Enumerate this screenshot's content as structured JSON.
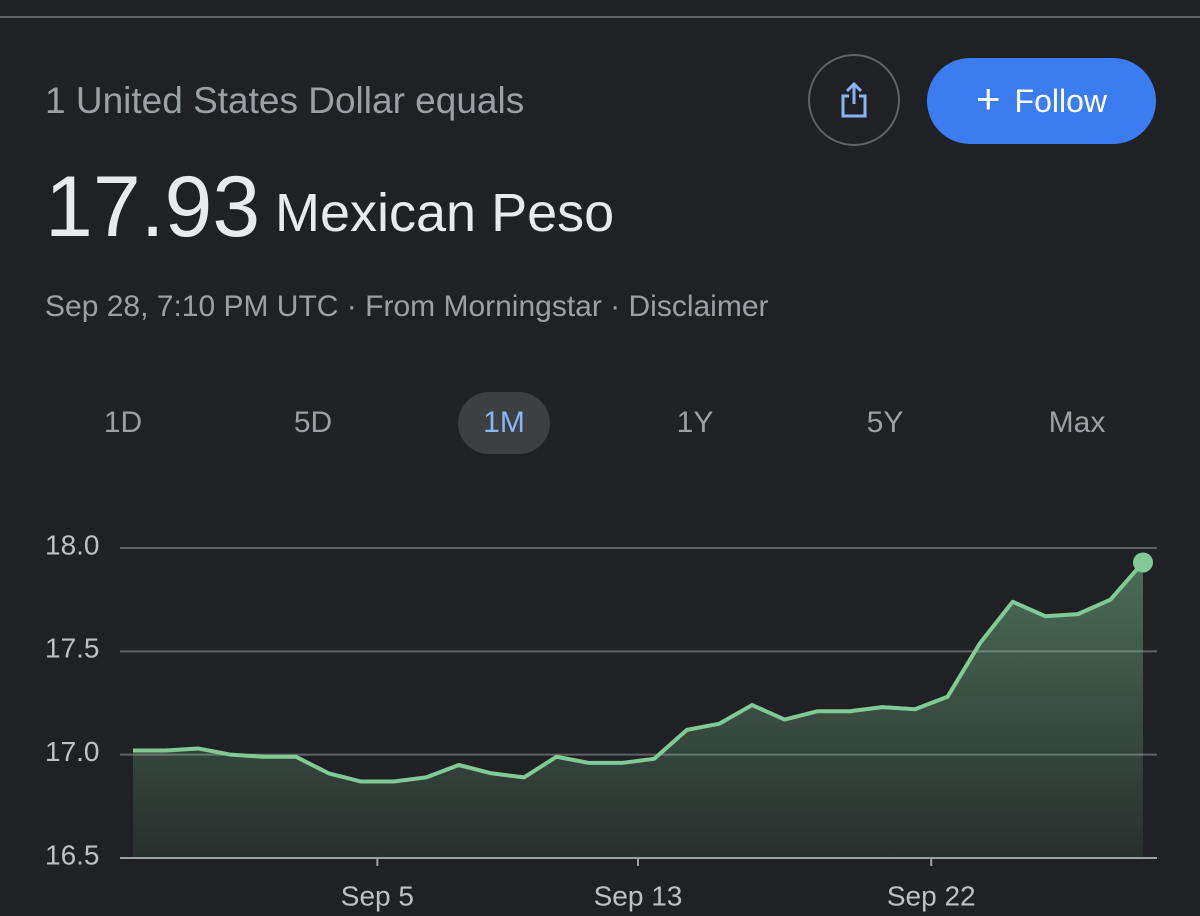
{
  "header": {
    "subtitle": "1 United States Dollar equals",
    "price": "17.93",
    "currency": "Mexican Peso",
    "meta": "Sep 28, 7:10 PM UTC · From Morningstar · Disclaimer",
    "follow": "Follow"
  },
  "tabs": [
    "1D",
    "5D",
    "1M",
    "1Y",
    "5Y",
    "Max"
  ],
  "chart_data": {
    "type": "area",
    "x": [
      0,
      1,
      2,
      3,
      4,
      5,
      6,
      7,
      8,
      9,
      10,
      11,
      12,
      13,
      14,
      15,
      16,
      17,
      18,
      19,
      20,
      21,
      22,
      23,
      24,
      25,
      26,
      27,
      28,
      29,
      30,
      31
    ],
    "series": [
      {
        "name": "USD/MXN",
        "color": "#81c995",
        "values": [
          17.02,
          17.02,
          17.03,
          17.0,
          16.99,
          16.99,
          16.91,
          16.87,
          16.87,
          16.89,
          16.95,
          16.91,
          16.89,
          16.99,
          16.96,
          16.96,
          16.98,
          17.12,
          17.15,
          17.24,
          17.17,
          17.21,
          17.21,
          17.23,
          17.22,
          17.28,
          17.54,
          17.74,
          17.67,
          17.68,
          17.75,
          17.93
        ]
      }
    ],
    "xlim": [
      0,
      31
    ],
    "xticks": [
      {
        "value": 7.5,
        "label": "Sep 5"
      },
      {
        "value": 15.5,
        "label": "Sep 13"
      },
      {
        "value": 24.5,
        "label": "Sep 22"
      }
    ],
    "ylim": [
      16.5,
      18.0
    ],
    "yticks": [
      {
        "value": 18,
        "label": "18.0"
      },
      17.5,
      {
        "value": 17,
        "label": "17.0"
      },
      16.5
    ],
    "grid": true
  }
}
